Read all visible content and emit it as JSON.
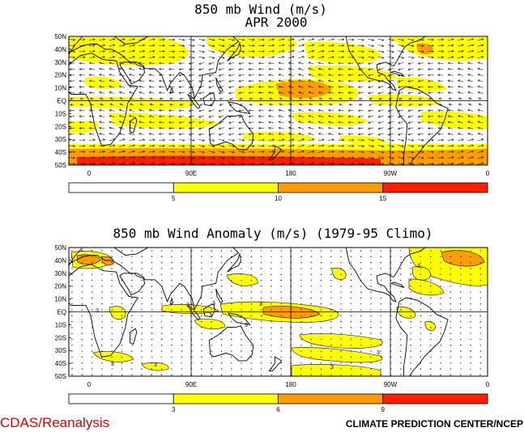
{
  "colors": {
    "c1": "#ffffff",
    "c2": "#ffff00",
    "c3": "#ff9d00",
    "c4": "#ff1e00",
    "coast": "#000000",
    "arrow": "#222222"
  },
  "chart_data": [
    {
      "type": "heatmap",
      "title": "850 mb Wind (m/s)",
      "subtitle": "APR 2000",
      "y_ticks": [
        "50N",
        "40N",
        "30N",
        "20N",
        "10N",
        "EQ",
        "10S",
        "20S",
        "30S",
        "40S",
        "50S"
      ],
      "x_ticks": [
        "0",
        "90E",
        "180",
        "90W",
        "0"
      ],
      "ylim": [
        -50,
        50
      ],
      "legend_ticks": [
        "5",
        "10",
        "15"
      ],
      "legend_levels": [
        0,
        5,
        10,
        15,
        20
      ],
      "legend_colors": [
        "#ffffff",
        "#ffff00",
        "#ff9d00",
        "#ff1e00"
      ]
    },
    {
      "type": "heatmap",
      "title": "850 mb Wind Anomaly (m/s) (1979-95 Climo)",
      "y_ticks": [
        "50N",
        "40N",
        "30N",
        "20N",
        "10N",
        "EQ",
        "10S",
        "20S",
        "30S",
        "40S",
        "50S"
      ],
      "x_ticks": [
        "0",
        "90E",
        "180",
        "90W",
        "0"
      ],
      "ylim": [
        -50,
        50
      ],
      "legend_ticks": [
        "3",
        "6",
        "9"
      ],
      "legend_levels": [
        0,
        3,
        6,
        9,
        12
      ],
      "legend_colors": [
        "#ffffff",
        "#ffff00",
        "#ff9d00",
        "#ff1e00"
      ],
      "contour_label": "3"
    }
  ],
  "footer": {
    "left": "CDAS/Reanalysis",
    "right": "CLIMATE PREDICTION CENTER/NCEP"
  }
}
